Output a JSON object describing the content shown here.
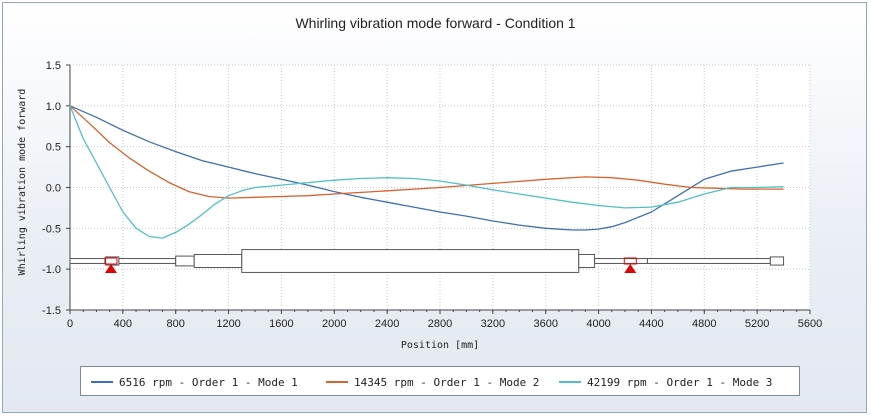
{
  "chart_data": {
    "type": "line",
    "title": "Whirling vibration mode forward - Condition 1",
    "xlabel": "Position  [mm]",
    "ylabel": "Whirling vibration mode forward",
    "xlim": [
      0,
      5600
    ],
    "ylim": [
      -1.5,
      1.5
    ],
    "x_ticks": [
      0,
      400,
      800,
      1200,
      1600,
      2000,
      2400,
      2800,
      3200,
      3600,
      4000,
      4400,
      4800,
      5200,
      5600
    ],
    "y_ticks": [
      "1.5",
      "1.0",
      "0.5",
      "0.0",
      "-0.5",
      "-1.0",
      "-1.5"
    ],
    "grid": true,
    "legend_position": "bottom",
    "series": [
      {
        "name": "6516 rpm - Order 1 - Mode 1",
        "color": "#3d6fb4",
        "x": [
          0,
          200,
          400,
          600,
          800,
          1000,
          1200,
          1400,
          1600,
          1800,
          2000,
          2200,
          2400,
          2600,
          2800,
          3000,
          3200,
          3400,
          3600,
          3800,
          3900,
          4000,
          4100,
          4200,
          4400,
          4600,
          4800,
          5000,
          5200,
          5400
        ],
        "y": [
          1.0,
          0.86,
          0.7,
          0.56,
          0.44,
          0.33,
          0.25,
          0.17,
          0.1,
          0.03,
          -0.05,
          -0.12,
          -0.18,
          -0.24,
          -0.3,
          -0.35,
          -0.41,
          -0.46,
          -0.5,
          -0.52,
          -0.52,
          -0.51,
          -0.48,
          -0.43,
          -0.3,
          -0.1,
          0.1,
          0.2,
          0.25,
          0.3
        ]
      },
      {
        "name": "14345 rpm - Order 1 - Mode 2",
        "color": "#d9622b",
        "x": [
          0,
          150,
          300,
          450,
          600,
          750,
          900,
          1050,
          1200,
          1400,
          1600,
          1800,
          2000,
          2400,
          2800,
          3200,
          3600,
          3900,
          4100,
          4300,
          4500,
          4700,
          4900,
          5100,
          5400
        ],
        "y": [
          1.0,
          0.78,
          0.55,
          0.36,
          0.2,
          0.06,
          -0.05,
          -0.11,
          -0.13,
          -0.12,
          -0.11,
          -0.1,
          -0.08,
          -0.04,
          0.0,
          0.05,
          0.1,
          0.13,
          0.12,
          0.09,
          0.04,
          0.0,
          -0.01,
          -0.02,
          -0.02
        ]
      },
      {
        "name": "42199 rpm - Order 1 - Mode 3",
        "color": "#4fc0c8",
        "x": [
          0,
          100,
          200,
          300,
          400,
          500,
          600,
          700,
          800,
          900,
          1000,
          1100,
          1200,
          1300,
          1400,
          1600,
          1800,
          2000,
          2200,
          2400,
          2600,
          2800,
          3000,
          3200,
          3400,
          3600,
          3800,
          4000,
          4200,
          4400,
          4600,
          4800,
          5000,
          5200,
          5400
        ],
        "y": [
          1.0,
          0.6,
          0.3,
          0.0,
          -0.3,
          -0.5,
          -0.6,
          -0.62,
          -0.55,
          -0.45,
          -0.33,
          -0.2,
          -0.1,
          -0.04,
          0.0,
          0.03,
          0.06,
          0.09,
          0.11,
          0.12,
          0.11,
          0.08,
          0.03,
          -0.03,
          -0.08,
          -0.13,
          -0.18,
          -0.22,
          -0.25,
          -0.24,
          -0.18,
          -0.08,
          0.0,
          0.0,
          0.01
        ]
      }
    ],
    "shaft": {
      "y": -0.9,
      "segments": [
        {
          "x0": 0,
          "x1": 270,
          "h": 0.03
        },
        {
          "x0": 270,
          "x1": 370,
          "h": 0.05
        },
        {
          "x0": 370,
          "x1": 800,
          "h": 0.03
        },
        {
          "x0": 800,
          "x1": 940,
          "h": 0.06
        },
        {
          "x0": 940,
          "x1": 1300,
          "h": 0.08
        },
        {
          "x0": 1300,
          "x1": 3850,
          "h": 0.14
        },
        {
          "x0": 3850,
          "x1": 3970,
          "h": 0.08
        },
        {
          "x0": 3970,
          "x1": 4370,
          "h": 0.03
        },
        {
          "x0": 4370,
          "x1": 5300,
          "h": 0.03
        },
        {
          "x0": 5300,
          "x1": 5400,
          "h": 0.05
        }
      ],
      "bearings": [
        310,
        4240
      ]
    }
  }
}
